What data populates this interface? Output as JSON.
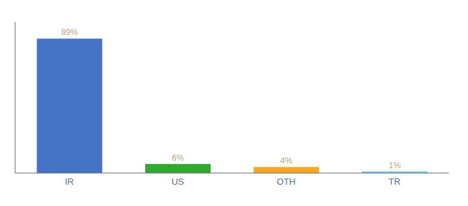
{
  "chart_data": {
    "type": "bar",
    "categories": [
      "IR",
      "US",
      "OTH",
      "TR"
    ],
    "values": [
      89,
      6,
      4,
      1
    ],
    "value_labels": [
      "89%",
      "6%",
      "4%",
      "1%"
    ],
    "colors": [
      "#4472c4",
      "#2eaa2e",
      "#f5a623",
      "#6ec6f0"
    ],
    "ylim": [
      0,
      100
    ],
    "data_labels": true,
    "tick_labels": "x",
    "grid": false
  }
}
